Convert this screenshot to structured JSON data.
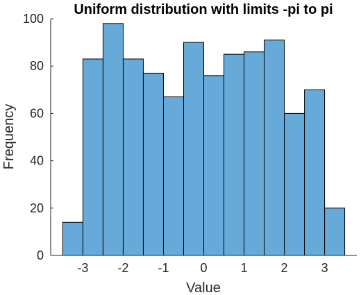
{
  "chart_data": {
    "type": "bar",
    "title": "Uniform distribution with limits -pi to pi",
    "xlabel": "Value",
    "ylabel": "Frequency",
    "bin_edges": [
      -3.5,
      -3.0,
      -2.5,
      -2.0,
      -1.5,
      -1.0,
      -0.5,
      0.0,
      0.5,
      1.0,
      1.5,
      2.0,
      2.5,
      3.0,
      3.5
    ],
    "values": [
      14,
      83,
      98,
      83,
      77,
      67,
      90,
      76,
      85,
      86,
      91,
      60,
      70,
      20
    ],
    "xlim": [
      -3.8,
      3.8
    ],
    "ylim": [
      0,
      100
    ],
    "xticks": [
      -3,
      -2,
      -1,
      0,
      1,
      2,
      3
    ],
    "yticks": [
      0,
      20,
      40,
      60,
      80,
      100
    ],
    "bar_color": "#66AADA",
    "grid": false
  }
}
